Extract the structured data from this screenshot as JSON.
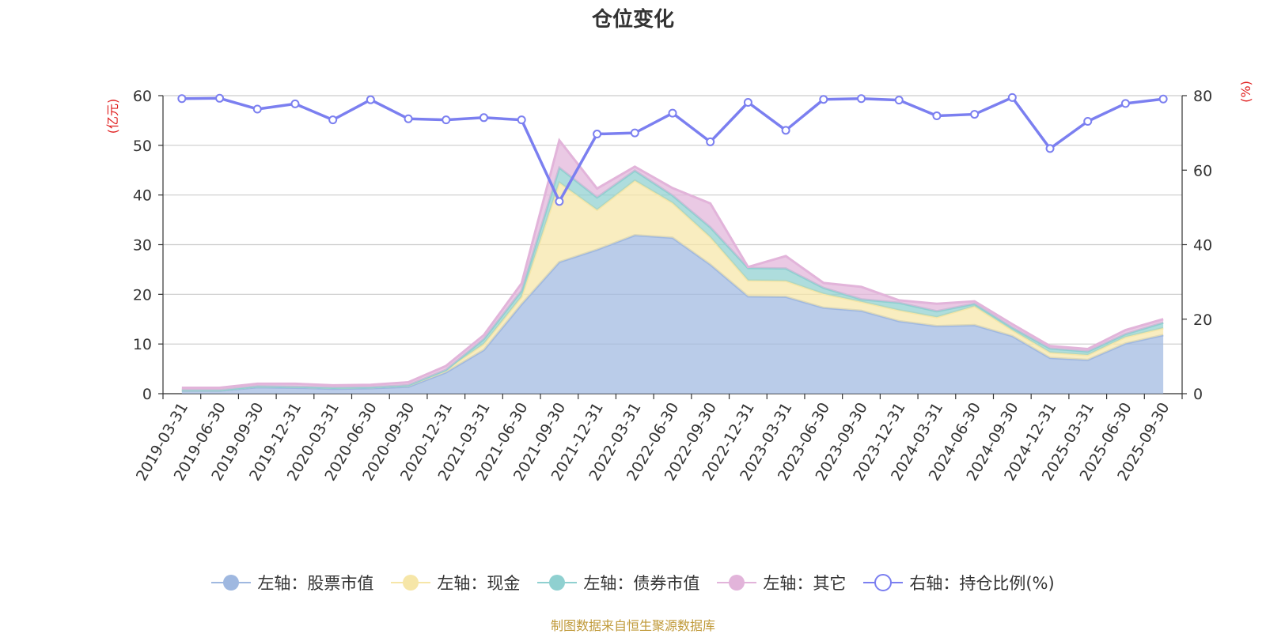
{
  "chart_data": {
    "type": "area",
    "title": "仓位变化",
    "categories": [
      "2019-03-31",
      "2019-06-30",
      "2019-09-30",
      "2019-12-31",
      "2020-03-31",
      "2020-06-30",
      "2020-09-30",
      "2020-12-31",
      "2021-03-31",
      "2021-06-30",
      "2021-09-30",
      "2021-12-31",
      "2022-03-31",
      "2022-06-30",
      "2022-09-30",
      "2022-12-31",
      "2023-03-31",
      "2023-06-30",
      "2023-09-30",
      "2023-12-31",
      "2024-03-31",
      "2024-06-30",
      "2024-09-30",
      "2024-12-31",
      "2025-03-31",
      "2025-06-30",
      "2025-09-30"
    ],
    "left_axis": {
      "unit_label": "(亿元)",
      "ylim": [
        0,
        60
      ],
      "ticks": [
        "0",
        "10",
        "20",
        "30",
        "40",
        "50",
        "60"
      ]
    },
    "right_axis": {
      "unit_label": "(%)",
      "ylim": [
        0,
        80
      ],
      "ticks": [
        "0",
        "20",
        "40",
        "60",
        "80"
      ]
    },
    "series": [
      {
        "name": "左轴：股票市值",
        "axis": "left",
        "color": "#9fb8e0",
        "values": [
          0.6,
          0.6,
          1.3,
          1.2,
          1.0,
          1.1,
          1.4,
          4.3,
          8.8,
          18.0,
          26.5,
          29.0,
          31.9,
          31.4,
          26.0,
          19.6,
          19.5,
          17.3,
          16.7,
          14.6,
          13.6,
          13.8,
          11.6,
          7.2,
          6.8,
          10.1,
          11.8
        ]
      },
      {
        "name": "左轴：现金",
        "axis": "left",
        "color": "#f6e6a8",
        "values": [
          0.1,
          0.1,
          0.2,
          0.2,
          0.2,
          0.2,
          0.3,
          0.5,
          1.2,
          1.5,
          16.0,
          8.0,
          11.0,
          7.0,
          5.5,
          3.2,
          3.2,
          2.8,
          1.8,
          2.2,
          1.8,
          3.8,
          1.2,
          1.1,
          1.0,
          1.3,
          1.4
        ]
      },
      {
        "name": "左轴：债券市值",
        "axis": "left",
        "color": "#8fd0d0",
        "values": [
          0.0,
          0.0,
          0.0,
          0.0,
          0.0,
          0.0,
          0.0,
          0.0,
          1.0,
          1.2,
          3.0,
          2.5,
          2.0,
          1.5,
          2.0,
          2.5,
          2.5,
          1.2,
          0.5,
          1.5,
          1.2,
          0.5,
          0.5,
          0.8,
          0.7,
          0.6,
          1.1
        ]
      },
      {
        "name": "左轴：其它",
        "axis": "left",
        "color": "#e2b4da",
        "values": [
          0.5,
          0.5,
          0.5,
          0.6,
          0.5,
          0.5,
          0.6,
          0.8,
          0.8,
          1.5,
          5.5,
          1.8,
          0.8,
          1.5,
          4.8,
          0.2,
          2.5,
          1.0,
          2.5,
          0.5,
          1.5,
          0.5,
          0.7,
          0.5,
          0.5,
          0.8,
          0.7
        ]
      },
      {
        "name": "右轴：持仓比例(%)",
        "axis": "right",
        "type": "line",
        "color": "#7b7ff0",
        "values": [
          79.2,
          79.3,
          76.4,
          77.8,
          73.5,
          78.9,
          73.8,
          73.5,
          74.1,
          73.5,
          51.6,
          69.7,
          70.0,
          75.3,
          67.6,
          78.2,
          70.7,
          79.0,
          79.2,
          78.8,
          74.6,
          75.0,
          79.5,
          65.8,
          73.1,
          77.9,
          79.1
        ]
      }
    ],
    "source_note": "制图数据来自恒生聚源数据库"
  }
}
